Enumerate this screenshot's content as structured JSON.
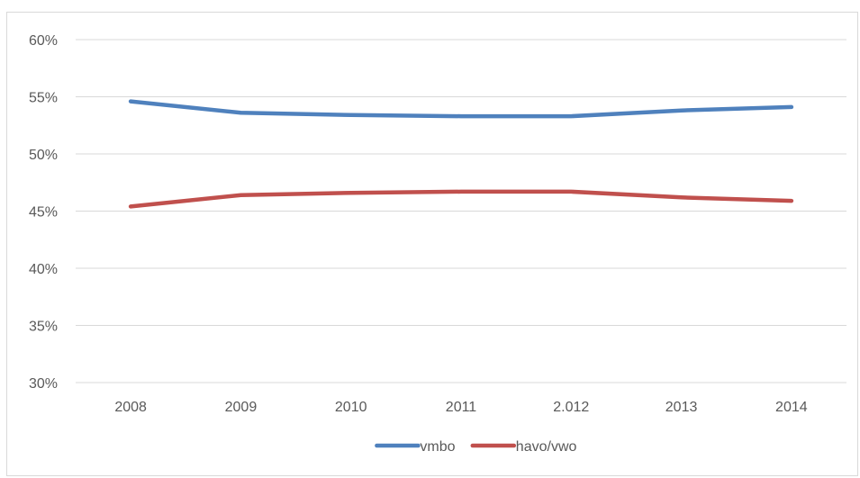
{
  "chart_data": {
    "type": "line",
    "title": "",
    "xlabel": "",
    "ylabel": "",
    "categories": [
      "2008",
      "2009",
      "2010",
      "2011",
      "2.012",
      "2013",
      "2014"
    ],
    "series": [
      {
        "name": "vmbo",
        "color": "#4f81bd",
        "values": [
          0.546,
          0.536,
          0.534,
          0.533,
          0.533,
          0.538,
          0.541
        ]
      },
      {
        "name": "havo/vwo",
        "color": "#c0504d",
        "values": [
          0.454,
          0.464,
          0.466,
          0.467,
          0.467,
          0.462,
          0.459
        ]
      }
    ],
    "ylim": [
      0.3,
      0.6
    ],
    "yticks": [
      0.3,
      0.35,
      0.4,
      0.45,
      0.5,
      0.55,
      0.6
    ],
    "ytick_labels": [
      "30%",
      "35%",
      "40%",
      "45%",
      "50%",
      "55%",
      "60%"
    ],
    "grid": true,
    "legend_position": "bottom"
  }
}
